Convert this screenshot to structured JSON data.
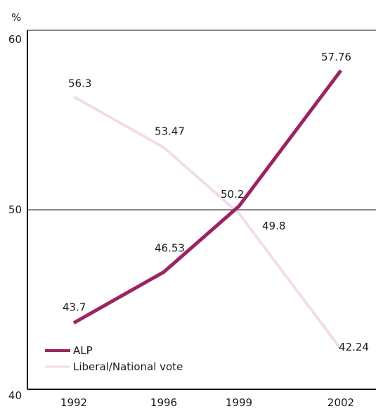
{
  "chart_data": {
    "type": "line",
    "title": "",
    "ylabel": "%",
    "xlabel": "",
    "categories": [
      "1992",
      "1996",
      "1999",
      "2002"
    ],
    "ylim": [
      40,
      60
    ],
    "yticks": [
      40,
      50,
      60
    ],
    "reference_line": 50,
    "legend_position": "bottom-left",
    "series": [
      {
        "name": "ALP",
        "values": [
          43.7,
          46.53,
          50.2,
          57.76
        ],
        "labels": [
          "43.7",
          "46.53",
          "50.2",
          "57.76"
        ],
        "color": "#9b2461"
      },
      {
        "name": "Liberal/National vote",
        "values": [
          56.3,
          53.47,
          49.8,
          42.24
        ],
        "labels": [
          "56.3",
          "53.47",
          "49.8",
          "42.24"
        ],
        "color": "#f2dcea"
      }
    ]
  }
}
